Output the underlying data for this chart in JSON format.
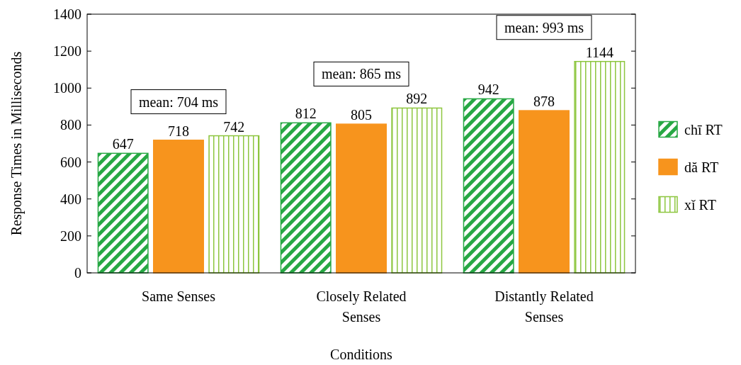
{
  "chart_data": {
    "type": "bar",
    "xlabel": "Conditions",
    "ylabel": "Response Times in Milliseconds",
    "categories": [
      "Same Senses",
      "Closely Related Senses",
      "Distantly Related Senses"
    ],
    "series": [
      {
        "name": "chī RT",
        "color": "#27a844",
        "values": [
          647,
          812,
          942
        ]
      },
      {
        "name": "dă RT",
        "color": "#f7941d",
        "values": [
          718,
          805,
          878
        ]
      },
      {
        "name": "xǐ RT",
        "color": "#8dc63f",
        "values": [
          742,
          892,
          1144
        ]
      }
    ],
    "ylim": [
      0,
      1400
    ],
    "yticks": [
      0,
      200,
      400,
      600,
      800,
      1000,
      1200,
      1400
    ],
    "data_labels": true,
    "legend": "right",
    "annotations": [
      "mean: 704 ms",
      "mean: 865 ms",
      "mean: 993 ms"
    ]
  }
}
